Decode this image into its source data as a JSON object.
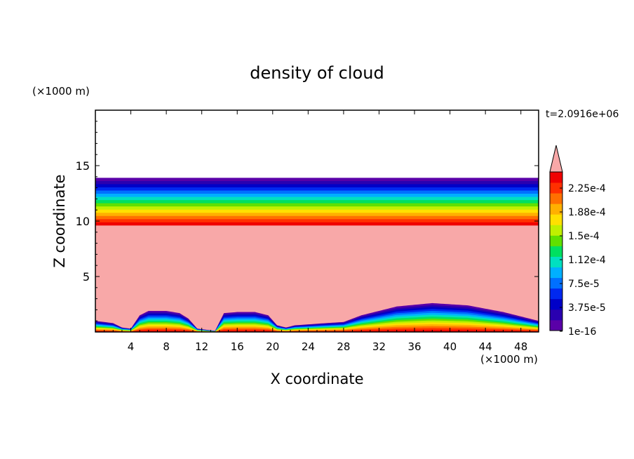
{
  "chart_data": {
    "type": "heatmap",
    "title": "density of cloud",
    "xlabel": "X coordinate",
    "ylabel": "Z coordinate",
    "x_unit": "(×1000 m)",
    "y_unit": "(×1000 m)",
    "time_label": "t=2.0916e+06",
    "xlim": [
      0,
      50
    ],
    "ylim": [
      0,
      20
    ],
    "x_ticks": [
      4,
      8,
      12,
      16,
      20,
      24,
      28,
      32,
      36,
      40,
      44,
      48
    ],
    "y_ticks": [
      5,
      10,
      15
    ],
    "colorbar": {
      "tick_labels": [
        "2.25e-4",
        "1.88e-4",
        "1.5e-4",
        "1.12e-4",
        "7.5e-5",
        "3.75e-5",
        "1e-16"
      ],
      "levels": [
        1e-16,
        1.875e-05,
        3.75e-05,
        5.625e-05,
        7.5e-05,
        9.375e-05,
        0.0001125,
        0.00013125,
        0.00015,
        0.00016875,
        0.0001875,
        0.00020625,
        0.000225,
        0.00024375
      ],
      "colors": [
        "#5a00a8",
        "#2a00b0",
        "#0000c8",
        "#0028f0",
        "#0070ff",
        "#00b0ff",
        "#00e0c0",
        "#00e060",
        "#60e000",
        "#c0f000",
        "#ffe000",
        "#ffb000",
        "#ff7000",
        "#ff3000",
        "#f00000"
      ],
      "extend_color": "#f8a8a8"
    },
    "cloud_layer": {
      "base_km": 9.6,
      "top_km": 13.9
    },
    "surface_cloud_top_km": [
      [
        0,
        1.0
      ],
      [
        1,
        0.9
      ],
      [
        2,
        0.8
      ],
      [
        3,
        0.4
      ],
      [
        4,
        0.3
      ],
      [
        5,
        1.5
      ],
      [
        6,
        1.9
      ],
      [
        8,
        1.9
      ],
      [
        9.5,
        1.7
      ],
      [
        10.5,
        1.2
      ],
      [
        11.5,
        0.3
      ],
      [
        12.5,
        0.2
      ],
      [
        13.5,
        0.1
      ],
      [
        14.5,
        1.7
      ],
      [
        16,
        1.8
      ],
      [
        18,
        1.8
      ],
      [
        19.5,
        1.5
      ],
      [
        20.5,
        0.6
      ],
      [
        21.5,
        0.4
      ],
      [
        22.5,
        0.6
      ],
      [
        26,
        0.8
      ],
      [
        28,
        0.9
      ],
      [
        30,
        1.5
      ],
      [
        34,
        2.3
      ],
      [
        38,
        2.6
      ],
      [
        42,
        2.4
      ],
      [
        46,
        1.8
      ],
      [
        50,
        1.0
      ]
    ],
    "grid": false,
    "legend": "colorbar-right"
  }
}
